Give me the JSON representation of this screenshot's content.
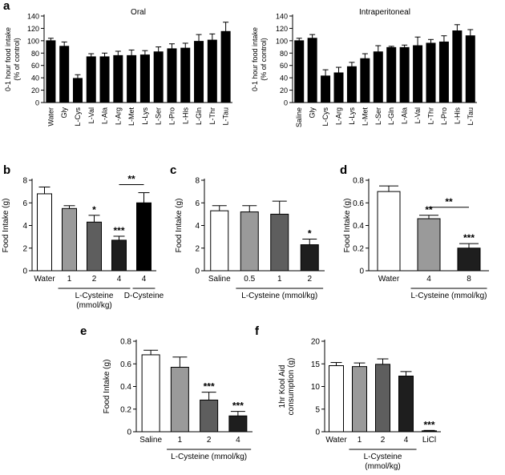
{
  "figure": {
    "panel_letters": [
      "a",
      "b",
      "c",
      "d",
      "e",
      "f"
    ]
  },
  "chart_data": [
    {
      "panel": "a",
      "type": "bar",
      "title": "Oral",
      "ylabel": "0-1 hour food intake (% of control)",
      "ylim": [
        0,
        140
      ],
      "yticks": [
        0,
        20,
        40,
        60,
        80,
        100,
        120,
        140
      ],
      "categories": [
        "Water",
        "Gly",
        "L-Cys",
        "L-Val",
        "L-Ala",
        "L-Arg",
        "L-Met",
        "L-Lys",
        "L-Ser",
        "L-Pro",
        "L-His",
        "L-Gln",
        "L-Thr",
        "L-Tau"
      ],
      "values": [
        100,
        91,
        39,
        74,
        74,
        76,
        76,
        77,
        82,
        87,
        88,
        99,
        101,
        115
      ],
      "errors": [
        4,
        7,
        6,
        5,
        6,
        7,
        9,
        7,
        8,
        8,
        8,
        11,
        10,
        15
      ],
      "colors": [
        "#000000",
        "#000000",
        "#000000",
        "#000000",
        "#000000",
        "#000000",
        "#000000",
        "#000000",
        "#000000",
        "#000000",
        "#000000",
        "#000000",
        "#000000",
        "#000000"
      ],
      "stars": [],
      "groups": []
    },
    {
      "panel": "a",
      "type": "bar",
      "title": "Intraperitoneal",
      "ylabel": "0-1 hour food intake (% of control)",
      "ylim": [
        0,
        140
      ],
      "yticks": [
        0,
        20,
        40,
        60,
        80,
        100,
        120,
        140
      ],
      "categories": [
        "Saline",
        "Gly",
        "L-Cys",
        "L-Arg",
        "L-Lys",
        "L-Met",
        "L-Ser",
        "L-Gln",
        "L-Ala",
        "L-Val",
        "L-Thr",
        "L-Pro",
        "L-His",
        "L-Tau"
      ],
      "values": [
        100,
        104,
        43,
        48,
        58,
        71,
        82,
        89,
        89,
        92,
        96,
        98,
        116,
        108
      ],
      "errors": [
        4,
        6,
        10,
        9,
        7,
        8,
        10,
        2,
        4,
        14,
        6,
        10,
        10,
        10
      ],
      "colors": [
        "#000000",
        "#000000",
        "#000000",
        "#000000",
        "#000000",
        "#000000",
        "#000000",
        "#000000",
        "#000000",
        "#000000",
        "#000000",
        "#000000",
        "#000000",
        "#000000"
      ],
      "stars": [],
      "groups": []
    },
    {
      "panel": "b",
      "type": "bar",
      "title": "",
      "ylabel": "Food Intake (g)",
      "ylim": [
        0,
        8
      ],
      "yticks": [
        0,
        2,
        4,
        6,
        8
      ],
      "categories": [
        "Water",
        "1",
        "2",
        "4",
        "4"
      ],
      "values": [
        6.8,
        5.5,
        4.3,
        2.7,
        6.0
      ],
      "errors": [
        0.6,
        0.25,
        0.6,
        0.35,
        0.9
      ],
      "colors": [
        "#ffffff",
        "#9a9a9a",
        "#5e5e5e",
        "#1e1e1e",
        "#000000"
      ],
      "stars": [
        "",
        "",
        "*",
        "***",
        ""
      ],
      "bracket": {
        "from": 3,
        "to": 4,
        "label": "**"
      },
      "groups": [
        {
          "label": "L-Cysteine\n(mmol/kg)",
          "from": 1,
          "to": 3
        },
        {
          "label": "D-Cysteine",
          "from": 4,
          "to": 4
        }
      ]
    },
    {
      "panel": "c",
      "type": "bar",
      "title": "",
      "ylabel": "Food Intake (g)",
      "ylim": [
        0,
        8
      ],
      "yticks": [
        0,
        2,
        4,
        6,
        8
      ],
      "categories": [
        "Saline",
        "0.5",
        "1",
        "2"
      ],
      "values": [
        5.3,
        5.2,
        5.0,
        2.3
      ],
      "errors": [
        0.45,
        0.55,
        1.15,
        0.5
      ],
      "colors": [
        "#ffffff",
        "#9a9a9a",
        "#5e5e5e",
        "#1e1e1e"
      ],
      "stars": [
        "",
        "",
        "",
        "*"
      ],
      "groups": [
        {
          "label": "L-Cysteine (mmol/kg)",
          "from": 1,
          "to": 3
        }
      ]
    },
    {
      "panel": "d",
      "type": "bar",
      "title": "",
      "ylabel": "Food Intake (g)",
      "ylim": [
        0,
        0.8
      ],
      "yticks": [
        0,
        0.2,
        0.4,
        0.6,
        0.8
      ],
      "ytick_labels": [
        "0",
        "0.2",
        "0.4",
        "0.6",
        "0.8"
      ],
      "categories": [
        "Water",
        "4",
        "8"
      ],
      "values": [
        0.7,
        0.46,
        0.2
      ],
      "errors": [
        0.05,
        0.03,
        0.04
      ],
      "colors": [
        "#ffffff",
        "#9a9a9a",
        "#1e1e1e"
      ],
      "stars": [
        "",
        "**",
        "***"
      ],
      "bracket": {
        "from": 1,
        "to": 2,
        "label": "**"
      },
      "groups": [
        {
          "label": "L-Cysteine (mmol/kg)",
          "from": 1,
          "to": 2
        }
      ]
    },
    {
      "panel": "e",
      "type": "bar",
      "title": "",
      "ylabel": "Food Intake (g)",
      "ylim": [
        0,
        0.8
      ],
      "yticks": [
        0,
        0.2,
        0.4,
        0.6,
        0.8
      ],
      "ytick_labels": [
        "0",
        "0.2",
        "0.4",
        "0.6",
        "0.8"
      ],
      "categories": [
        "Saline",
        "1",
        "2",
        "4"
      ],
      "values": [
        0.68,
        0.57,
        0.28,
        0.14
      ],
      "errors": [
        0.04,
        0.09,
        0.07,
        0.04
      ],
      "colors": [
        "#ffffff",
        "#9a9a9a",
        "#5e5e5e",
        "#1e1e1e"
      ],
      "stars": [
        "",
        "",
        "***",
        "***"
      ],
      "groups": [
        {
          "label": "L-Cysteine (mmol/kg)",
          "from": 1,
          "to": 3
        }
      ]
    },
    {
      "panel": "f",
      "type": "bar",
      "title": "",
      "ylabel": "1hr Kool Aid consumption (g)",
      "ylim": [
        0,
        20
      ],
      "yticks": [
        0,
        5,
        10,
        15,
        20
      ],
      "categories": [
        "Water",
        "1",
        "2",
        "4",
        "LiCl"
      ],
      "values": [
        14.6,
        14.4,
        14.9,
        12.3,
        0.2
      ],
      "errors": [
        0.7,
        0.8,
        1.2,
        1.0,
        0.1
      ],
      "colors": [
        "#ffffff",
        "#9a9a9a",
        "#5e5e5e",
        "#1e1e1e",
        "#000000"
      ],
      "stars": [
        "",
        "",
        "",
        "",
        "***"
      ],
      "groups": [
        {
          "label": "L-Cysteine\n(mmol/kg)",
          "from": 1,
          "to": 3
        }
      ]
    }
  ]
}
